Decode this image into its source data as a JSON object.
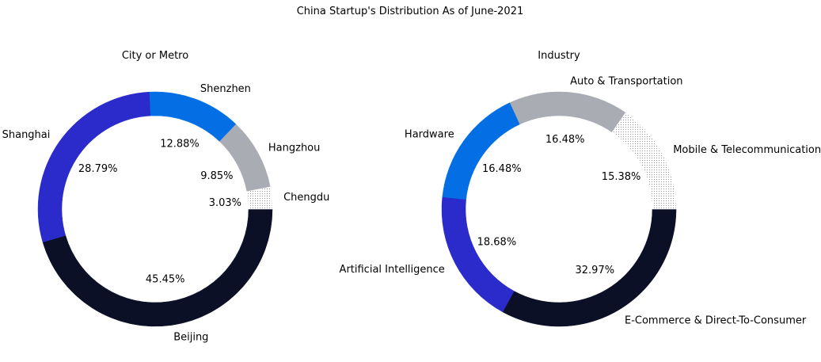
{
  "figure": {
    "title": "China Startup's Distribution As of June-2021"
  },
  "chart_data": [
    {
      "type": "pie",
      "title": "City or Metro",
      "categories": [
        "Beijing",
        "Shanghai",
        "Shenzhen",
        "Hangzhou",
        "Chengdu"
      ],
      "values": [
        45.45,
        28.79,
        12.88,
        9.85,
        3.03
      ],
      "value_labels": [
        "45.45%",
        "28.79%",
        "12.88%",
        "9.85%",
        "3.03%"
      ],
      "colors": [
        "#0b1026",
        "#2b2bcb",
        "#046fe4",
        "#a9acb3",
        "#dotted"
      ],
      "donut": true,
      "legend": "none"
    },
    {
      "type": "pie",
      "title": "Industry",
      "categories": [
        "E-Commerce & Direct-To-Consumer",
        "Artificial Intelligence",
        "Hardware",
        "Auto & Transportation",
        "Mobile & Telecommunications"
      ],
      "values": [
        32.97,
        18.68,
        16.48,
        16.48,
        15.38
      ],
      "value_labels": [
        "32.97%",
        "18.68%",
        "16.48%",
        "16.48%",
        "15.38%"
      ],
      "colors": [
        "#0b1026",
        "#2b2bcb",
        "#046fe4",
        "#a9acb3",
        "#dotted"
      ],
      "donut": true,
      "legend": "none"
    }
  ]
}
